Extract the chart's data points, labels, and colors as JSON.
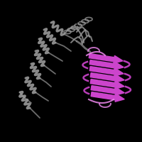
{
  "background_color": "#000000",
  "figsize": [
    2.0,
    2.0
  ],
  "dpi": 100,
  "gray_color": "#999999",
  "purple_color": "#cc44cc",
  "purple_dark": "#993399",
  "purple_light": "#dd77dd",
  "pink_color": "#ee88ee",
  "helix_color": "#888888",
  "strand_dark": "#aa33aa",
  "strand_outline": "#000000"
}
